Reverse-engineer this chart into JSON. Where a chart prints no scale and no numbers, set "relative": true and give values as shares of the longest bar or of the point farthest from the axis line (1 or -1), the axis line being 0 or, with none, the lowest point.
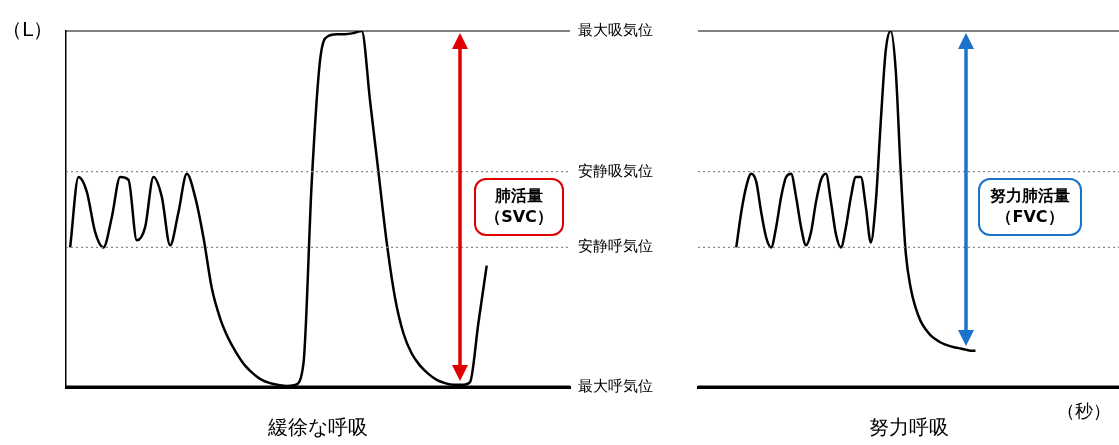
{
  "chart_data": [
    {
      "type": "line",
      "relative": true,
      "xlabel": "緩徐な呼吸",
      "ylabel": "（L）",
      "color": "#000000",
      "categories": [
        null,
        null,
        null,
        null,
        null,
        null,
        null,
        null,
        null,
        null,
        null,
        null,
        null,
        null,
        null,
        null,
        null,
        null,
        null,
        null,
        null,
        null,
        null,
        null,
        null,
        null,
        null,
        null,
        null,
        null,
        null,
        null,
        null,
        null,
        null,
        null,
        null,
        null,
        null,
        null,
        null,
        null,
        null,
        null,
        null,
        null,
        null,
        null,
        null,
        null,
        null
      ],
      "values": [
        0.392,
        0.59,
        0.548,
        0.435,
        0.392,
        0.477,
        0.59,
        0.582,
        0.412,
        0.449,
        0.59,
        0.534,
        0.398,
        0.491,
        0.599,
        0.534,
        0.42,
        0.278,
        0.193,
        0.136,
        0.094,
        0.06,
        0.037,
        0.02,
        0.011,
        0.006,
        0.003,
        0.006,
        0.065,
        0.577,
        0.918,
        0.986,
        0.991,
        0.991,
        0.994,
        1.0,
        0.804,
        0.605,
        0.406,
        0.25,
        0.151,
        0.094,
        0.06,
        0.037,
        0.02,
        0.011,
        0.006,
        0.006,
        0.014,
        0.179,
        0.341
      ],
      "ref_lines": [
        {
          "axis": "y",
          "value": 1,
          "label": "最大吸気位",
          "color": "#000000",
          "line_style": "solid"
        },
        {
          "axis": "y",
          "value": 0.605,
          "label": "安静吸気位",
          "color": "#888888",
          "line_style": "dotted"
        },
        {
          "axis": "y",
          "value": 0.392,
          "label": "安静呼気位",
          "color": "#888888",
          "line_style": "dotted"
        },
        {
          "axis": "y",
          "value": 0,
          "label": "最大呼気位",
          "color": "#000000",
          "line_style": "solid"
        }
      ],
      "annotations": [
        "肺活量（SVC）"
      ]
    },
    {
      "type": "line",
      "relative": true,
      "xlabel": "努力呼吸",
      "color": "#000000",
      "categories": [
        null,
        null,
        null,
        null,
        null,
        null,
        null,
        null,
        null,
        null,
        null,
        null,
        null,
        null,
        null,
        null,
        null,
        null,
        null,
        null,
        null,
        null,
        null,
        null,
        null,
        null,
        null,
        null,
        null,
        null,
        null,
        null,
        null,
        null,
        null,
        null,
        null,
        null,
        null,
        null,
        null,
        null,
        null,
        null,
        null,
        null,
        null,
        null,
        null
      ],
      "values": [
        0.392,
        0.491,
        0.563,
        0.599,
        0.577,
        0.491,
        0.42,
        0.392,
        0.449,
        0.534,
        0.59,
        0.599,
        0.534,
        0.449,
        0.398,
        0.435,
        0.52,
        0.582,
        0.599,
        0.52,
        0.429,
        0.392,
        0.449,
        0.534,
        0.59,
        0.59,
        0.506,
        0.406,
        0.52,
        0.747,
        0.946,
        1.0,
        0.889,
        0.605,
        0.378,
        0.278,
        0.222,
        0.185,
        0.162,
        0.145,
        0.134,
        0.125,
        0.119,
        0.114,
        0.111,
        0.108,
        0.105,
        0.102,
        0.102
      ],
      "ref_lines": [
        {
          "axis": "y",
          "value": 1,
          "color": "#000000",
          "line_style": "solid"
        },
        {
          "axis": "y",
          "value": 0.605,
          "color": "#888888",
          "line_style": "dotted"
        },
        {
          "axis": "y",
          "value": 0.392,
          "color": "#888888",
          "line_style": "dotted"
        },
        {
          "axis": "y",
          "value": 0,
          "color": "#000000",
          "line_style": "solid"
        }
      ],
      "annotations": [
        "努力肺活量（FVC）",
        "（秒）"
      ]
    }
  ]
}
